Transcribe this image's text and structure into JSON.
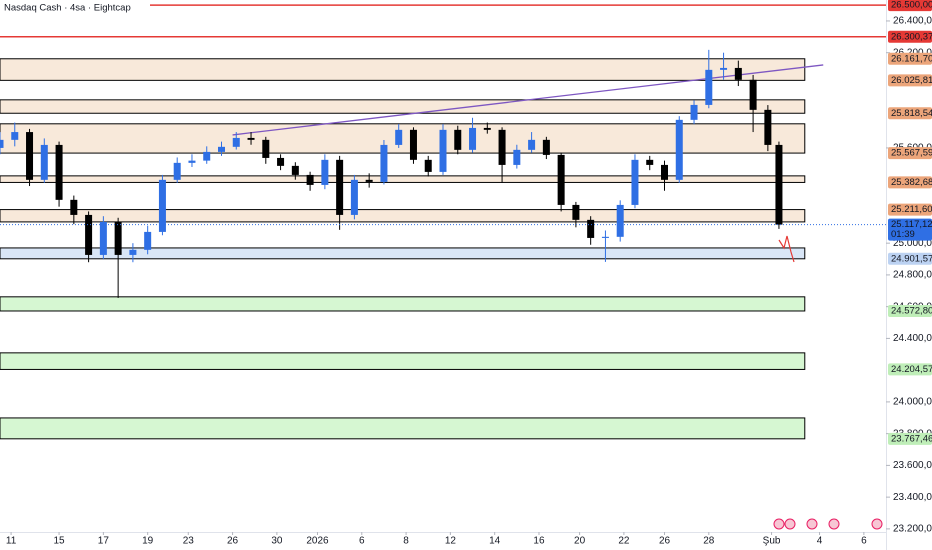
{
  "chart_data": {
    "type": "candlestick",
    "title": "Nasdaq Cash · 4sa · Eightcap",
    "up_color": "#2f6fe4",
    "down_color": "#000000",
    "xlim": [
      0,
      240
    ],
    "ylim": [
      23067,
      26532
    ],
    "xticks": [
      {
        "value": 3,
        "label": "11"
      },
      {
        "value": 16,
        "label": "15"
      },
      {
        "value": 28,
        "label": "17"
      },
      {
        "value": 40,
        "label": "19"
      },
      {
        "value": 51,
        "label": "23"
      },
      {
        "value": 63,
        "label": "26"
      },
      {
        "value": 75,
        "label": "30"
      },
      {
        "value": 86,
        "label": "2026"
      },
      {
        "value": 98,
        "label": "6"
      },
      {
        "value": 110,
        "label": "8"
      },
      {
        "value": 122,
        "label": "12"
      },
      {
        "value": 134,
        "label": "14"
      },
      {
        "value": 146,
        "label": "16"
      },
      {
        "value": 157,
        "label": "20"
      },
      {
        "value": 169,
        "label": "22"
      },
      {
        "value": 180,
        "label": "26"
      },
      {
        "value": 192,
        "label": "28"
      },
      {
        "value": 209,
        "label": "Şub"
      },
      {
        "value": 222,
        "label": "4"
      },
      {
        "value": 234,
        "label": "6"
      }
    ],
    "yticks": [
      {
        "value": 26400,
        "label": "26.400,00"
      },
      {
        "value": 26200,
        "label": "26.200,00"
      },
      {
        "value": 25600,
        "label": "25.600,00"
      },
      {
        "value": 25000,
        "label": "25.000,00"
      },
      {
        "value": 24800,
        "label": "24.800,00"
      },
      {
        "value": 24600,
        "label": "24.600,00"
      },
      {
        "value": 24400,
        "label": "24.400,00"
      },
      {
        "value": 24000,
        "label": "24.000,00"
      },
      {
        "value": 23800,
        "label": "23.800,00"
      },
      {
        "value": 23600,
        "label": "23.600,00"
      },
      {
        "value": 23400,
        "label": "23.400,00"
      },
      {
        "value": 23200,
        "label": "23.200,00"
      }
    ],
    "x": [
      0,
      4,
      8,
      12,
      16,
      20,
      24,
      28,
      32,
      36,
      40,
      44,
      48,
      52,
      56,
      60,
      64,
      68,
      72,
      76,
      80,
      84,
      88,
      92,
      96,
      100,
      104,
      108,
      112,
      116,
      120,
      124,
      128,
      132,
      136,
      140,
      144,
      148,
      152,
      156,
      160,
      164,
      168,
      172,
      176,
      180,
      184,
      188,
      192,
      196,
      200,
      204,
      208,
      211
    ],
    "open": [
      25600,
      25651,
      25700,
      25399,
      25619,
      25273,
      25178,
      24926,
      25134,
      24926,
      24958,
      25071,
      25399,
      25506,
      25520,
      25575,
      25607,
      25663,
      25651,
      25537,
      25487,
      25430,
      25367,
      25525,
      25178,
      25399,
      25386,
      25619,
      25714,
      25525,
      25449,
      25714,
      25588,
      25726,
      25714,
      25493,
      25588,
      25651,
      25556,
      25241,
      25147,
      25033,
      25040,
      25241,
      25525,
      25493,
      25399,
      25777,
      25871,
      26092,
      26104,
      26029,
      25840,
      25619
    ],
    "high": [
      25700,
      25760,
      25720,
      25660,
      25640,
      25300,
      25200,
      25170,
      25160,
      25000,
      25110,
      25430,
      25540,
      25560,
      25610,
      25640,
      25700,
      25700,
      25670,
      25560,
      25510,
      25450,
      25560,
      25550,
      25430,
      25440,
      25650,
      25750,
      25730,
      25550,
      25750,
      25740,
      25790,
      25760,
      25730,
      25620,
      25700,
      25670,
      25570,
      25260,
      25170,
      25080,
      25270,
      25560,
      25550,
      25520,
      25800,
      25900,
      26218,
      26200,
      26150,
      26060,
      25870,
      25640
    ],
    "low": [
      25560,
      25610,
      25360,
      25380,
      25230,
      25120,
      24880,
      24900,
      24655,
      24880,
      24930,
      25050,
      25380,
      25480,
      25500,
      25550,
      25590,
      25620,
      25500,
      25460,
      25400,
      25330,
      25340,
      25084,
      25150,
      25350,
      25370,
      25600,
      25500,
      25420,
      25430,
      25560,
      25570,
      25690,
      25380,
      25470,
      25570,
      25530,
      25200,
      25100,
      24990,
      24882,
      25010,
      25220,
      25460,
      25330,
      25380,
      25750,
      25850,
      26030,
      25990,
      25700,
      25580,
      25090
    ],
    "close": [
      25651,
      25700,
      25399,
      25619,
      25273,
      25178,
      24926,
      25134,
      24926,
      24958,
      25071,
      25399,
      25506,
      25520,
      25575,
      25607,
      25663,
      25651,
      25537,
      25487,
      25430,
      25367,
      25525,
      25178,
      25399,
      25386,
      25619,
      25714,
      25525,
      25449,
      25714,
      25588,
      25726,
      25714,
      25493,
      25588,
      25651,
      25556,
      25241,
      25147,
      25033,
      25040,
      25241,
      25525,
      25493,
      25399,
      25777,
      25871,
      26092,
      26104,
      26029,
      25840,
      25619,
      25117.12
    ],
    "trendline": {
      "x": [
        63,
        223
      ],
      "values": [
        25682,
        26123
      ],
      "color": "#7e57c2"
    },
    "zones_end": 218,
    "zones": [
      {
        "high": 26161.7,
        "low": 26025.81,
        "color": "#f8e9da"
      },
      {
        "high": 25903,
        "low": 25818.54,
        "color": "#f8e9da"
      },
      {
        "high": 25752,
        "low": 25567.59,
        "color": "#f8e9da"
      },
      {
        "high": 25424,
        "low": 25382.68,
        "color": "#f8e9da"
      },
      {
        "high": 25211.6,
        "low": 25134,
        "color": "#f8e9da"
      },
      {
        "high": 24970,
        "low": 24901.57,
        "color": "#d9e6f7"
      },
      {
        "high": 24662,
        "low": 24572.8,
        "color": "#d6f7d2"
      },
      {
        "high": 24309,
        "low": 24204.57,
        "color": "#d6f7d2"
      },
      {
        "high": 23899,
        "low": 23767.46,
        "color": "#d6f7d2"
      }
    ],
    "levels": [
      {
        "value": 26500,
        "label": "26.500,00",
        "color": "#e53935",
        "text_color": "#ffffff",
        "line": true
      },
      {
        "value": 26300.37,
        "label": "26.300,37",
        "color": "#e53935",
        "text_color": "#ffffff",
        "line": true
      },
      {
        "value": 26161.7,
        "label": "26.161,70",
        "color": "#eca57a",
        "text_color": "#ffffff"
      },
      {
        "value": 26025.81,
        "label": "26.025,81",
        "color": "#eca57a",
        "text_color": "#ffffff"
      },
      {
        "value": 25818.54,
        "label": "25.818,54",
        "color": "#eca57a",
        "text_color": "#ffffff"
      },
      {
        "value": 25567.59,
        "label": "25.567,59",
        "color": "#eca57a",
        "text_color": "#ffffff"
      },
      {
        "value": 25382.68,
        "label": "25.382,68",
        "color": "#eca57a",
        "text_color": "#ffffff"
      },
      {
        "value": 25211.6,
        "label": "25.211,60",
        "color": "#eca57a",
        "text_color": "#ffffff"
      },
      {
        "value": 24901.57,
        "label": "24.901,57",
        "color": "#bcd2f2",
        "text_color": "#131722"
      },
      {
        "value": 24572.8,
        "label": "24.572,80",
        "color": "#bfeeb8",
        "text_color": "#131722"
      },
      {
        "value": 24204.57,
        "label": "24.204,57",
        "color": "#bfeeb8",
        "text_color": "#131722"
      },
      {
        "value": 23767.46,
        "label": "23.767,46",
        "color": "#bfeeb8",
        "text_color": "#131722"
      }
    ],
    "current": {
      "value": 25117.12,
      "label": "25.117,12",
      "countdown": "01:39",
      "color": "#2f6fe4"
    }
  }
}
